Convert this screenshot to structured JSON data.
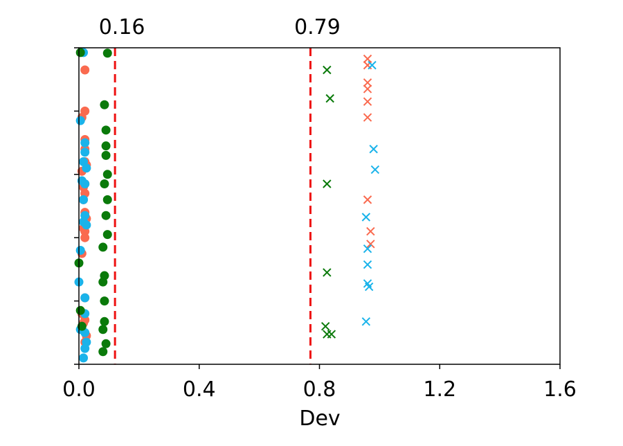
{
  "chart_data": {
    "type": "scatter",
    "title": "",
    "xlabel": "Dev",
    "ylabel": "",
    "xlim": [
      0.0,
      1.6
    ],
    "ylim": [
      0,
      1
    ],
    "grid": false,
    "legend": "none",
    "x_ticks": [
      0.0,
      0.4,
      0.8,
      1.2,
      1.6
    ],
    "x_tick_labels": [
      "0.0",
      "0.4",
      "0.8",
      "1.2",
      "1.6"
    ],
    "y_tick_count": 6,
    "vlines": [
      {
        "x": 0.12,
        "label": "0.16",
        "color": "#ee1111"
      },
      {
        "x": 0.77,
        "label": "0.79",
        "color": "#ee1111"
      }
    ],
    "series": [
      {
        "color": "#fa6a4f",
        "marker": "circle",
        "points": [
          [
            0.02,
            0.93
          ],
          [
            0.02,
            0.8
          ],
          [
            0.01,
            0.78
          ],
          [
            0.02,
            0.71
          ],
          [
            0.02,
            0.68
          ],
          [
            0.02,
            0.64
          ],
          [
            0.025,
            0.63
          ],
          [
            0.01,
            0.61
          ],
          [
            0.02,
            0.57
          ],
          [
            0.015,
            0.56
          ],
          [
            0.02,
            0.54
          ],
          [
            0.015,
            0.52
          ],
          [
            0.02,
            0.48
          ],
          [
            0.025,
            0.46
          ],
          [
            0.015,
            0.43
          ],
          [
            0.02,
            0.42
          ],
          [
            0.02,
            0.4
          ],
          [
            0.01,
            0.35
          ],
          [
            0.02,
            0.21
          ],
          [
            0.01,
            0.16
          ],
          [
            0.02,
            0.14
          ],
          [
            0.015,
            0.13
          ],
          [
            0.025,
            0.09
          ],
          [
            0.02,
            0.07
          ]
        ]
      },
      {
        "color": "#1ab3ea",
        "marker": "circle",
        "points": [
          [
            0.015,
            0.985
          ],
          [
            0.005,
            0.77
          ],
          [
            0.02,
            0.7
          ],
          [
            0.02,
            0.67
          ],
          [
            0.015,
            0.64
          ],
          [
            0.025,
            0.62
          ],
          [
            0.01,
            0.58
          ],
          [
            0.02,
            0.57
          ],
          [
            0.015,
            0.52
          ],
          [
            0.02,
            0.47
          ],
          [
            0.015,
            0.45
          ],
          [
            0.025,
            0.44
          ],
          [
            0.005,
            0.36
          ],
          [
            0.0,
            0.26
          ],
          [
            0.02,
            0.21
          ],
          [
            0.02,
            0.16
          ],
          [
            0.005,
            0.11
          ],
          [
            0.02,
            0.1
          ],
          [
            0.025,
            0.07
          ],
          [
            0.02,
            0.05
          ],
          [
            0.015,
            0.02
          ]
        ]
      },
      {
        "color": "#0a7a0a",
        "marker": "circle",
        "points": [
          [
            0.005,
            0.985
          ],
          [
            0.095,
            0.983
          ],
          [
            0.085,
            0.82
          ],
          [
            0.09,
            0.74
          ],
          [
            0.09,
            0.69
          ],
          [
            0.09,
            0.66
          ],
          [
            0.095,
            0.6
          ],
          [
            0.085,
            0.57
          ],
          [
            0.095,
            0.52
          ],
          [
            0.09,
            0.47
          ],
          [
            0.095,
            0.41
          ],
          [
            0.08,
            0.37
          ],
          [
            0.0,
            0.32
          ],
          [
            0.085,
            0.28
          ],
          [
            0.08,
            0.26
          ],
          [
            0.085,
            0.2
          ],
          [
            0.085,
            0.135
          ],
          [
            0.08,
            0.11
          ],
          [
            0.09,
            0.065
          ],
          [
            0.08,
            0.04
          ],
          [
            0.005,
            0.17
          ],
          [
            0.01,
            0.12
          ]
        ]
      },
      {
        "color": "#fa6a4f",
        "marker": "x",
        "points": [
          [
            0.96,
            0.965
          ],
          [
            0.96,
            0.945
          ],
          [
            0.96,
            0.89
          ],
          [
            0.96,
            0.87
          ],
          [
            0.96,
            0.83
          ],
          [
            0.96,
            0.78
          ],
          [
            0.96,
            0.52
          ],
          [
            0.97,
            0.42
          ],
          [
            0.97,
            0.38
          ]
        ]
      },
      {
        "color": "#1ab3ea",
        "marker": "x",
        "points": [
          [
            0.975,
            0.945
          ],
          [
            0.98,
            0.68
          ],
          [
            0.985,
            0.615
          ],
          [
            0.955,
            0.465
          ],
          [
            0.96,
            0.365
          ],
          [
            0.96,
            0.315
          ],
          [
            0.96,
            0.255
          ],
          [
            0.965,
            0.245
          ],
          [
            0.955,
            0.135
          ]
        ]
      },
      {
        "color": "#0a7a0a",
        "marker": "x",
        "points": [
          [
            0.825,
            0.93
          ],
          [
            0.835,
            0.84
          ],
          [
            0.825,
            0.57
          ],
          [
            0.825,
            0.29
          ],
          [
            0.82,
            0.12
          ],
          [
            0.825,
            0.095
          ],
          [
            0.84,
            0.095
          ]
        ]
      }
    ]
  }
}
